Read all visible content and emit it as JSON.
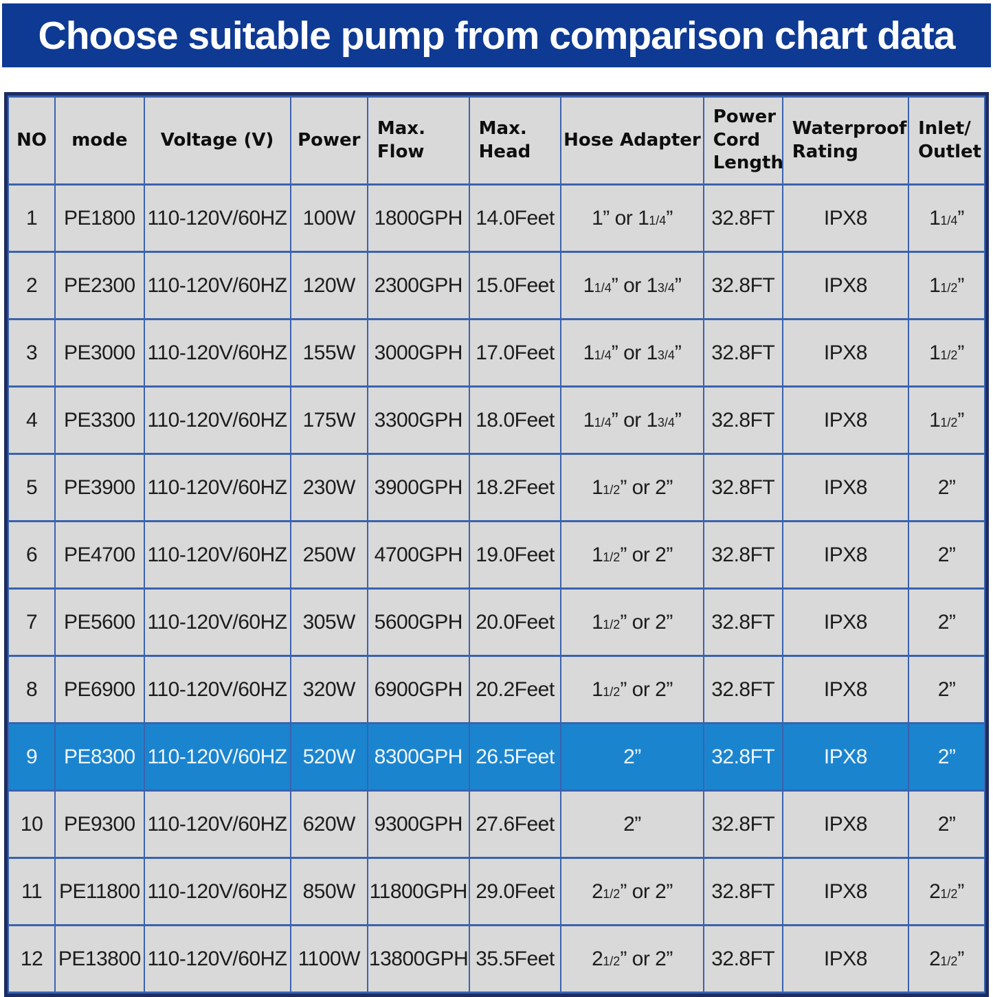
{
  "title": "Choose suitable pump from comparison chart data",
  "colors": {
    "banner_bg": "#0e3a94",
    "highlight_bg": "#1b84cf",
    "cell_bg": "#d9d9d9",
    "grid_line": "#3a62ad",
    "frame": "#1c2d63",
    "highlight_text": "#eef7fd",
    "banner_text": "#ffffff"
  },
  "table": {
    "columns": [
      {
        "key": "no",
        "label": "NO"
      },
      {
        "key": "mode",
        "label": "mode"
      },
      {
        "key": "voltage",
        "label": "Voltage (V)"
      },
      {
        "key": "power",
        "label": "Power"
      },
      {
        "key": "max-flow",
        "label": "Max.\nFlow"
      },
      {
        "key": "max-head",
        "label": "Max.\nHead"
      },
      {
        "key": "hose-adapter",
        "label": "Hose Adapter"
      },
      {
        "key": "power-cord-length",
        "label": "Power\nCord\nLength"
      },
      {
        "key": "waterproof-rating",
        "label": "Waterproof\nRating"
      },
      {
        "key": "inlet-outlet",
        "label": "Inlet/\nOutlet"
      }
    ],
    "rows": [
      {
        "highlighted": false,
        "cells": [
          "1",
          "PE1800",
          "110-120V/60HZ",
          "100W",
          "1800GPH",
          "14.0Feet",
          "1” or 1{1/4}”",
          "32.8FT",
          "IPX8",
          "1{1/4}”"
        ]
      },
      {
        "highlighted": false,
        "cells": [
          "2",
          "PE2300",
          "110-120V/60HZ",
          "120W",
          "2300GPH",
          "15.0Feet",
          "1{1/4}” or 1{3/4}”",
          "32.8FT",
          "IPX8",
          "1{1/2}”"
        ]
      },
      {
        "highlighted": false,
        "cells": [
          "3",
          "PE3000",
          "110-120V/60HZ",
          "155W",
          "3000GPH",
          "17.0Feet",
          "1{1/4}” or 1{3/4}”",
          "32.8FT",
          "IPX8",
          "1{1/2}”"
        ]
      },
      {
        "highlighted": false,
        "cells": [
          "4",
          "PE3300",
          "110-120V/60HZ",
          "175W",
          "3300GPH",
          "18.0Feet",
          "1{1/4}” or 1{3/4}”",
          "32.8FT",
          "IPX8",
          "1{1/2}”"
        ]
      },
      {
        "highlighted": false,
        "cells": [
          "5",
          "PE3900",
          "110-120V/60HZ",
          "230W",
          "3900GPH",
          "18.2Feet",
          "1{1/2}” or 2”",
          "32.8FT",
          "IPX8",
          "2”"
        ]
      },
      {
        "highlighted": false,
        "cells": [
          "6",
          "PE4700",
          "110-120V/60HZ",
          "250W",
          "4700GPH",
          "19.0Feet",
          "1{1/2}” or 2”",
          "32.8FT",
          "IPX8",
          "2”"
        ]
      },
      {
        "highlighted": false,
        "cells": [
          "7",
          "PE5600",
          "110-120V/60HZ",
          "305W",
          "5600GPH",
          "20.0Feet",
          "1{1/2}” or 2”",
          "32.8FT",
          "IPX8",
          "2”"
        ]
      },
      {
        "highlighted": false,
        "cells": [
          "8",
          "PE6900",
          "110-120V/60HZ",
          "320W",
          "6900GPH",
          "20.2Feet",
          "1{1/2}” or 2”",
          "32.8FT",
          "IPX8",
          "2”"
        ]
      },
      {
        "highlighted": true,
        "cells": [
          "9",
          "PE8300",
          "110-120V/60HZ",
          "520W",
          "8300GPH",
          "26.5Feet",
          "2”",
          "32.8FT",
          "IPX8",
          "2”"
        ]
      },
      {
        "highlighted": false,
        "cells": [
          "10",
          "PE9300",
          "110-120V/60HZ",
          "620W",
          "9300GPH",
          "27.6Feet",
          "2”",
          "32.8FT",
          "IPX8",
          "2”"
        ]
      },
      {
        "highlighted": false,
        "cells": [
          "11",
          "PE11800",
          "110-120V/60HZ",
          "850W",
          "11800GPH",
          "29.0Feet",
          "2{1/2}” or 2”",
          "32.8FT",
          "IPX8",
          "2{1/2}”"
        ]
      },
      {
        "highlighted": false,
        "cells": [
          "12",
          "PE13800",
          "110-120V/60HZ",
          "1100W",
          "13800GPH",
          "35.5Feet",
          "2{1/2}” or 2”",
          "32.8FT",
          "IPX8",
          "2{1/2}”"
        ]
      }
    ]
  }
}
